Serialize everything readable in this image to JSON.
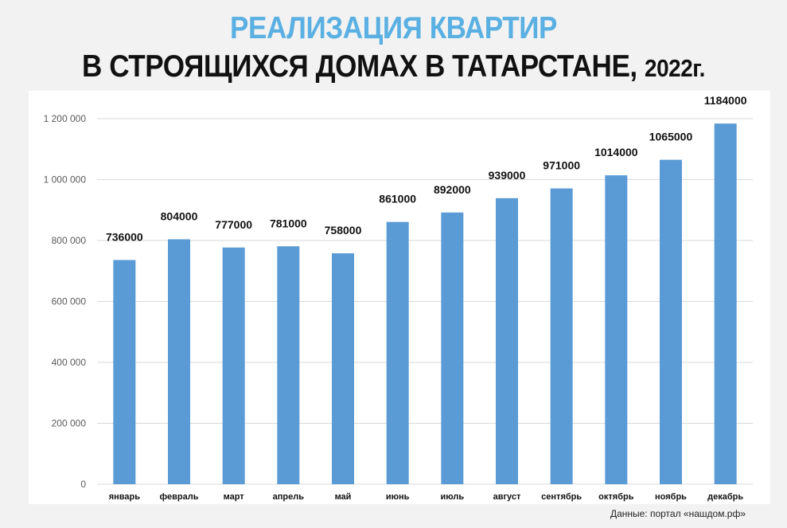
{
  "title": {
    "line1": "РЕАЛИЗАЦИЯ КВАРТИР",
    "line2": "В СТРОЯЩИХСЯ ДОМАХ В ТАТАРСТАНЕ,",
    "year": "2022г."
  },
  "source": "Данные: портал «нашдом.рф»",
  "colors": {
    "bar": "#5b9bd5",
    "title_accent": "#5ab0e2",
    "grid": "#d9d9d9"
  },
  "chart_data": {
    "type": "bar",
    "categories": [
      "январь",
      "февраль",
      "март",
      "апрель",
      "май",
      "июнь",
      "июль",
      "август",
      "сентябрь",
      "октябрь",
      "ноябрь",
      "декабрь"
    ],
    "values": [
      736000,
      804000,
      777000,
      781000,
      758000,
      861000,
      892000,
      939000,
      971000,
      1014000,
      1065000,
      1184000
    ],
    "data_labels": [
      "736000",
      "804000",
      "777000",
      "781000",
      "758000",
      "861000",
      "892000",
      "939000",
      "971000",
      "1014000",
      "1065000",
      "1184000"
    ],
    "y_ticks": [
      "0",
      "200 000",
      "400 000",
      "600 000",
      "800 000",
      "1 000 000",
      "1 200 000"
    ],
    "ylim": [
      0,
      1200000
    ],
    "grid": true,
    "legend": "none"
  }
}
